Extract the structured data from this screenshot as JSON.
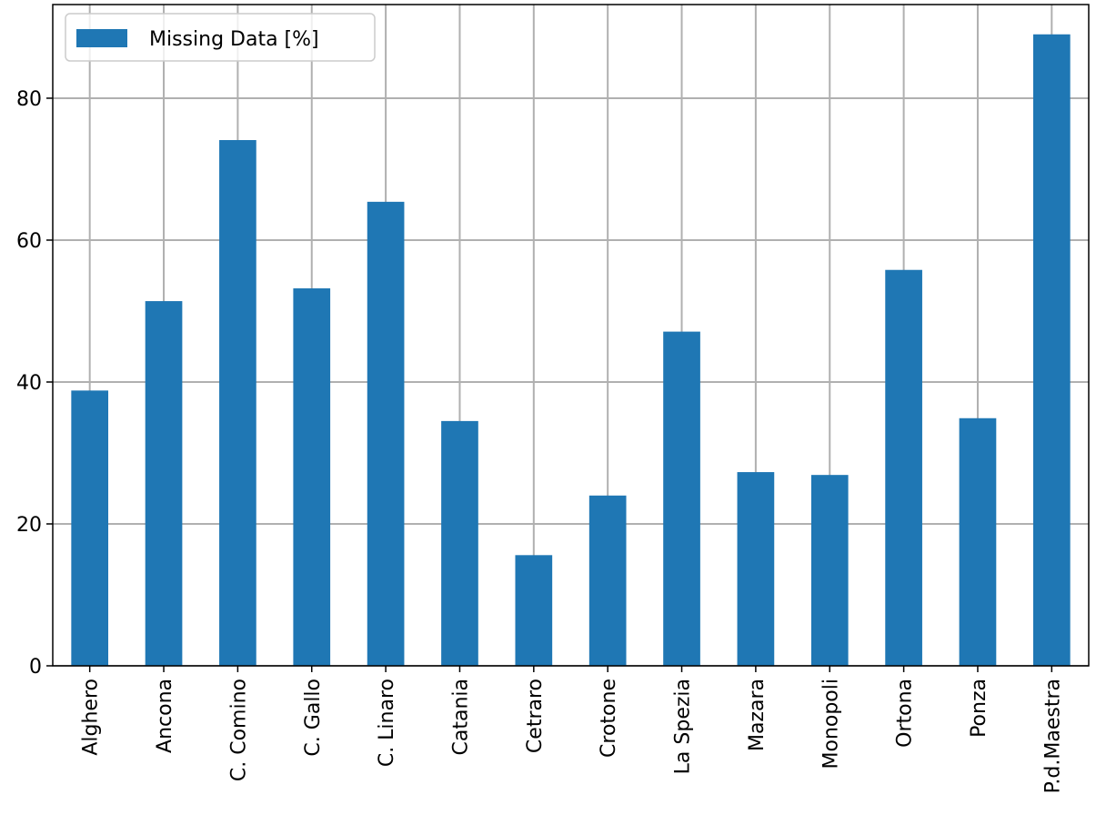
{
  "chart_data": {
    "type": "bar",
    "categories": [
      "Alghero",
      "Ancona",
      "C. Comino",
      "C. Gallo",
      "C. Linaro",
      "Catania",
      "Cetraro",
      "Crotone",
      "La Spezia",
      "Mazara",
      "Monopoli",
      "Ortona",
      "Ponza",
      "P.d.Maestra"
    ],
    "series": [
      {
        "name": "Missing Data [%]",
        "color": "#1f77b4",
        "values": [
          38.8,
          51.4,
          74.1,
          53.2,
          65.4,
          34.5,
          15.6,
          24.0,
          47.1,
          27.3,
          26.9,
          55.8,
          34.9,
          89.0
        ]
      }
    ],
    "ylim": [
      0,
      93.2
    ],
    "yticks": [
      0,
      20,
      40,
      60,
      80
    ],
    "grid": true,
    "legend": "upper left"
  }
}
